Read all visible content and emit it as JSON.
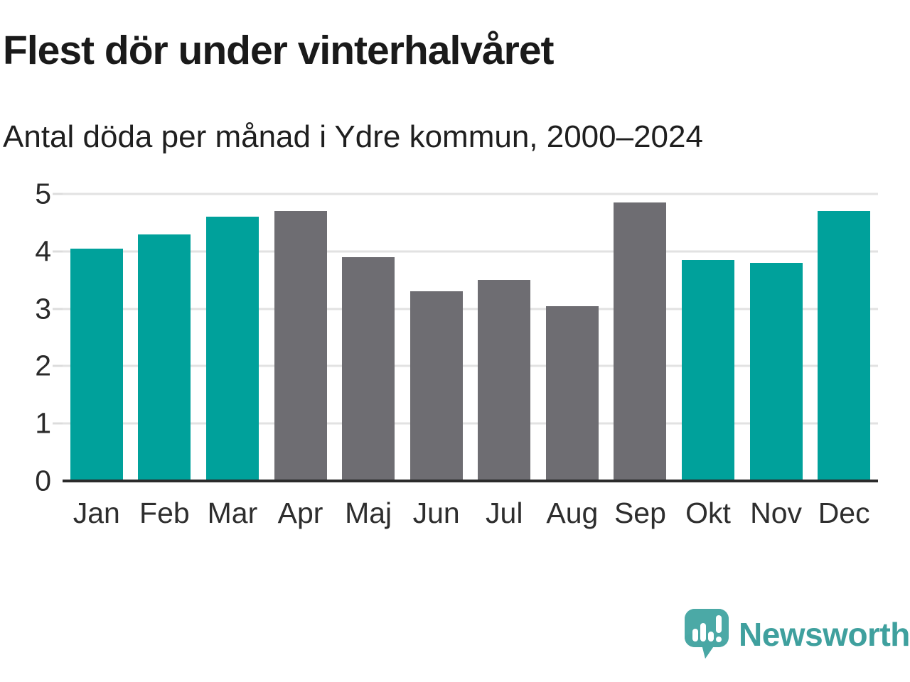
{
  "header": {
    "title": "Flest dör under vinterhalvåret",
    "subtitle": "Antal döda per månad i Ydre kommun, 2000–2024"
  },
  "chart_data": {
    "type": "bar",
    "title": "Flest dör under vinterhalvåret",
    "subtitle": "Antal döda per månad i Ydre kommun, 2000–2024",
    "categories": [
      "Jan",
      "Feb",
      "Mar",
      "Apr",
      "Maj",
      "Jun",
      "Jul",
      "Aug",
      "Sep",
      "Okt",
      "Nov",
      "Dec"
    ],
    "values": [
      4.05,
      4.3,
      4.6,
      4.7,
      3.9,
      3.3,
      3.5,
      3.05,
      4.85,
      3.85,
      3.8,
      4.7
    ],
    "groups": [
      "winter",
      "winter",
      "winter",
      "summer",
      "summer",
      "summer",
      "summer",
      "summer",
      "summer",
      "winter",
      "winter",
      "winter"
    ],
    "colors": {
      "winter": "#00a19b",
      "summer": "#6e6d72"
    },
    "xlabel": "",
    "ylabel": "",
    "ylim": [
      0,
      5
    ],
    "yticks": [
      0,
      1,
      2,
      3,
      4,
      5
    ],
    "grid": "horizontal",
    "legend": "none"
  },
  "footer": {
    "brand": "Newsworthy",
    "brand_color": "#3fa09e",
    "logo_icon": "bar-chart-speech-bubble-icon",
    "logo_fill": "#4ba9a6",
    "logo_shade": "#3d908e"
  }
}
